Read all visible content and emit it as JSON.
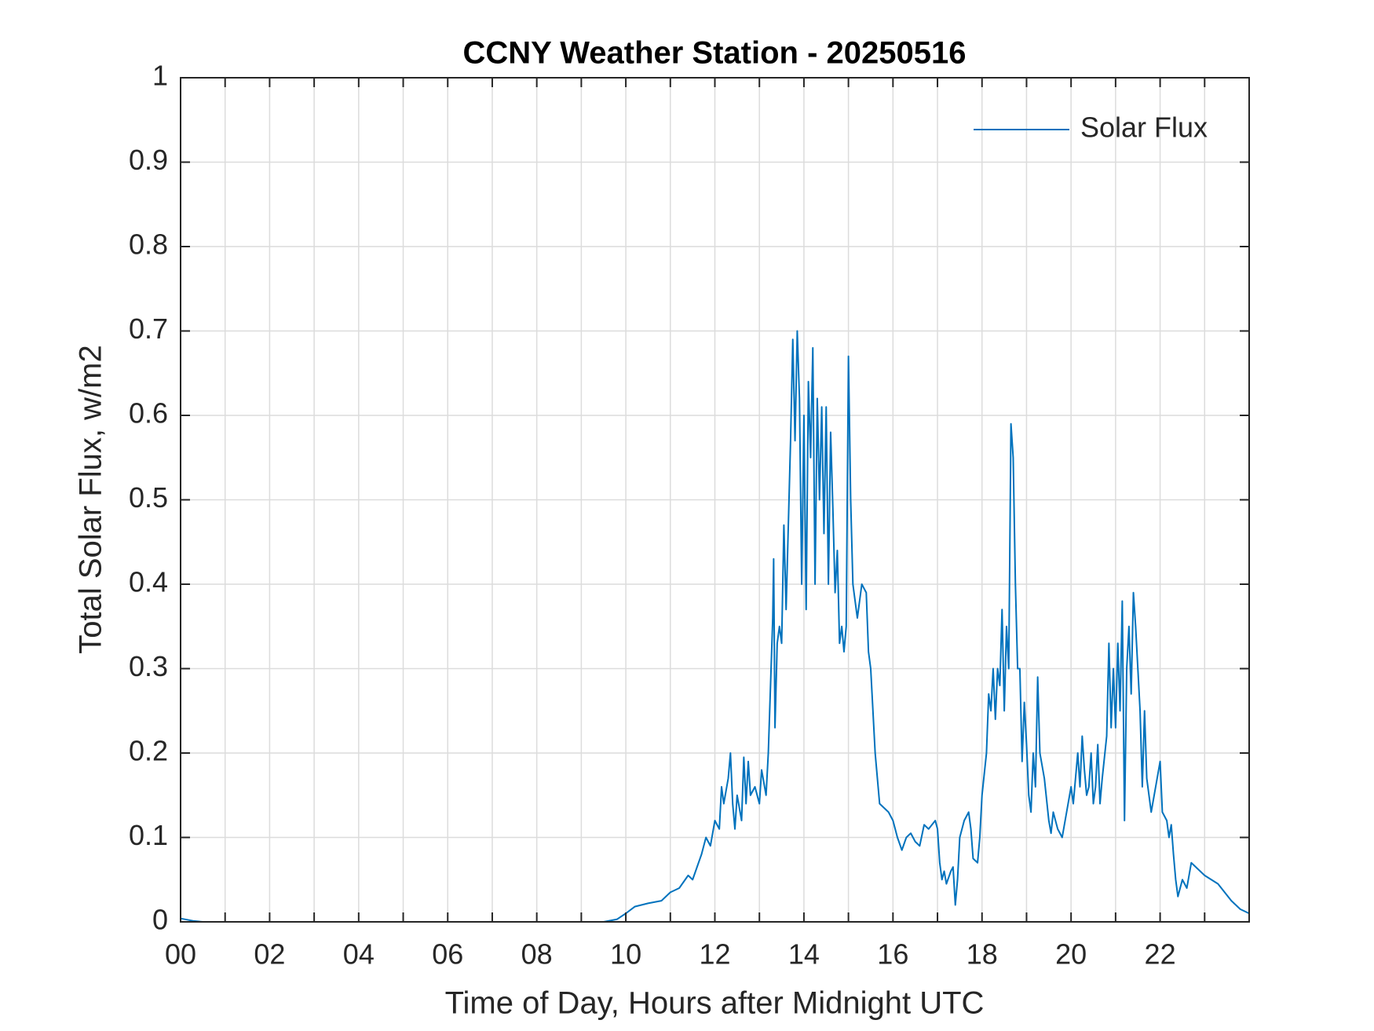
{
  "chart_data": {
    "type": "line",
    "title": "CCNY Weather Station - 20250516",
    "xlabel": "Time of Day, Hours after Midnight UTC",
    "ylabel": "Total Solar Flux, w/m2",
    "xlim": [
      0,
      24
    ],
    "ylim": [
      0,
      1
    ],
    "xticks": [
      {
        "value": 0,
        "label": "00"
      },
      {
        "value": 2,
        "label": "02"
      },
      {
        "value": 4,
        "label": "04"
      },
      {
        "value": 6,
        "label": "06"
      },
      {
        "value": 8,
        "label": "08"
      },
      10,
      12,
      14,
      16,
      18,
      20,
      22
    ],
    "xminorticks": [
      1,
      3,
      5,
      7,
      9,
      11,
      13,
      15,
      17,
      19,
      21,
      23
    ],
    "yticks": [
      0,
      0.1,
      0.2,
      0.3,
      0.4,
      0.5,
      0.6,
      0.7,
      0.8,
      0.9,
      1
    ],
    "grid": true,
    "legend": "top-right",
    "x": [
      0,
      0.3,
      0.5,
      5,
      9.5,
      9.8,
      10,
      10.2,
      10.5,
      10.8,
      11,
      11.2,
      11.4,
      11.5,
      11.6,
      11.7,
      11.8,
      11.9,
      12,
      12.1,
      12.15,
      12.2,
      12.3,
      12.35,
      12.4,
      12.45,
      12.5,
      12.6,
      12.65,
      12.7,
      12.75,
      12.8,
      12.9,
      13,
      13.05,
      13.15,
      13.2,
      13.3,
      13.32,
      13.35,
      13.4,
      13.45,
      13.5,
      13.55,
      13.6,
      13.7,
      13.75,
      13.8,
      13.85,
      13.9,
      13.95,
      14,
      14.05,
      14.1,
      14.15,
      14.2,
      14.25,
      14.3,
      14.35,
      14.4,
      14.45,
      14.5,
      14.55,
      14.6,
      14.65,
      14.7,
      14.75,
      14.8,
      14.85,
      14.9,
      14.95,
      15,
      15.05,
      15.1,
      15.15,
      15.2,
      15.3,
      15.4,
      15.45,
      15.5,
      15.6,
      15.7,
      15.9,
      16,
      16.1,
      16.2,
      16.3,
      16.4,
      16.5,
      16.6,
      16.7,
      16.8,
      16.95,
      17,
      17.05,
      17.1,
      17.15,
      17.2,
      17.3,
      17.35,
      17.4,
      17.45,
      17.5,
      17.6,
      17.7,
      17.75,
      17.8,
      17.9,
      17.95,
      18,
      18.1,
      18.15,
      18.2,
      18.25,
      18.3,
      18.35,
      18.4,
      18.45,
      18.5,
      18.55,
      18.6,
      18.65,
      18.7,
      18.75,
      18.8,
      18.85,
      18.9,
      18.95,
      19,
      19.05,
      19.1,
      19.15,
      19.2,
      19.25,
      19.3,
      19.4,
      19.5,
      19.55,
      19.6,
      19.7,
      19.8,
      19.9,
      20,
      20.05,
      20.15,
      20.2,
      20.25,
      20.3,
      20.35,
      20.4,
      20.45,
      20.5,
      20.55,
      20.6,
      20.65,
      20.7,
      20.8,
      20.85,
      20.9,
      20.95,
      21,
      21.05,
      21.1,
      21.15,
      21.2,
      21.25,
      21.3,
      21.35,
      21.4,
      21.45,
      21.5,
      21.55,
      21.6,
      21.65,
      21.7,
      21.8,
      21.9,
      22,
      22.05,
      22.15,
      22.2,
      22.25,
      22.3,
      22.35,
      22.4,
      22.5,
      22.6,
      22.7,
      22.8,
      23,
      23.3,
      23.6,
      23.8,
      24
    ],
    "series": [
      {
        "name": "Solar Flux",
        "color": "#0072bd",
        "values": [
          0.004,
          0.001,
          0,
          0,
          0,
          0.003,
          0.01,
          0.018,
          0.022,
          0.025,
          0.035,
          0.04,
          0.055,
          0.05,
          0.065,
          0.08,
          0.1,
          0.09,
          0.12,
          0.11,
          0.16,
          0.14,
          0.17,
          0.2,
          0.14,
          0.11,
          0.15,
          0.12,
          0.195,
          0.14,
          0.19,
          0.15,
          0.16,
          0.14,
          0.18,
          0.15,
          0.2,
          0.36,
          0.43,
          0.23,
          0.33,
          0.35,
          0.33,
          0.47,
          0.37,
          0.57,
          0.69,
          0.57,
          0.7,
          0.62,
          0.4,
          0.6,
          0.37,
          0.64,
          0.55,
          0.68,
          0.4,
          0.62,
          0.5,
          0.61,
          0.46,
          0.61,
          0.4,
          0.58,
          0.49,
          0.39,
          0.44,
          0.33,
          0.35,
          0.32,
          0.35,
          0.67,
          0.5,
          0.4,
          0.38,
          0.36,
          0.4,
          0.39,
          0.32,
          0.3,
          0.2,
          0.14,
          0.13,
          0.12,
          0.1,
          0.085,
          0.1,
          0.105,
          0.095,
          0.09,
          0.115,
          0.11,
          0.12,
          0.11,
          0.07,
          0.05,
          0.06,
          0.045,
          0.06,
          0.065,
          0.02,
          0.05,
          0.1,
          0.12,
          0.13,
          0.11,
          0.075,
          0.07,
          0.1,
          0.15,
          0.2,
          0.27,
          0.25,
          0.3,
          0.24,
          0.3,
          0.28,
          0.37,
          0.25,
          0.35,
          0.3,
          0.59,
          0.55,
          0.4,
          0.3,
          0.3,
          0.19,
          0.26,
          0.21,
          0.15,
          0.13,
          0.2,
          0.16,
          0.29,
          0.2,
          0.17,
          0.12,
          0.105,
          0.13,
          0.11,
          0.1,
          0.13,
          0.16,
          0.14,
          0.2,
          0.16,
          0.22,
          0.18,
          0.15,
          0.16,
          0.2,
          0.14,
          0.16,
          0.21,
          0.14,
          0.17,
          0.22,
          0.33,
          0.23,
          0.3,
          0.23,
          0.33,
          0.25,
          0.38,
          0.12,
          0.3,
          0.35,
          0.27,
          0.39,
          0.35,
          0.3,
          0.25,
          0.16,
          0.25,
          0.17,
          0.13,
          0.16,
          0.19,
          0.13,
          0.12,
          0.1,
          0.115,
          0.08,
          0.05,
          0.03,
          0.05,
          0.04,
          0.07,
          0.065,
          0.055,
          0.045,
          0.025,
          0.015,
          0.01
        ]
      }
    ]
  }
}
